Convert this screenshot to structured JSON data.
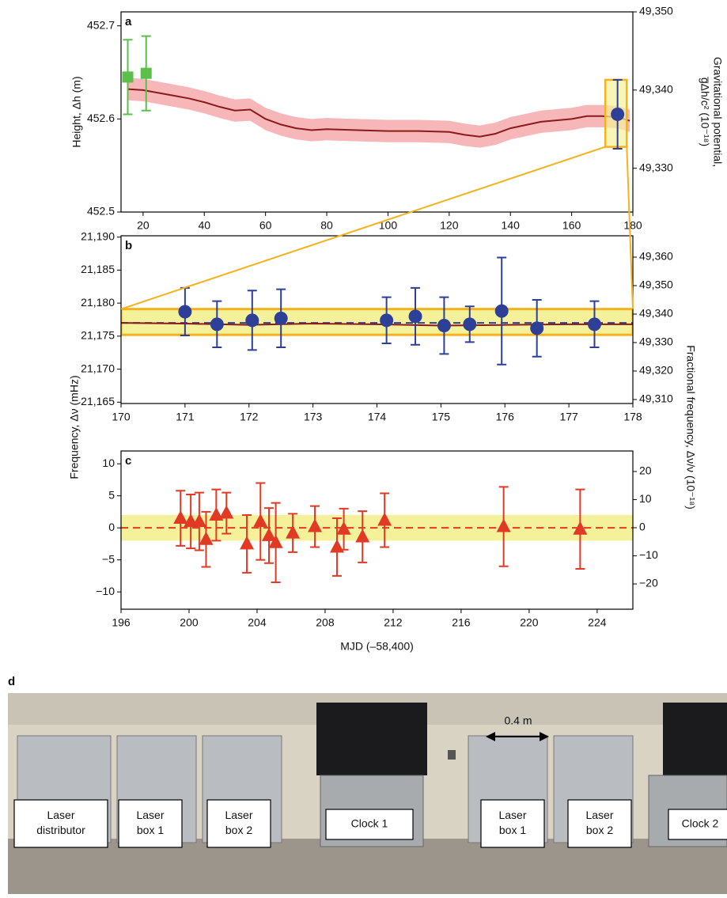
{
  "chart_data": [
    {
      "type": "errorbar",
      "panel": "a",
      "ylabel": "Height, Δh (m)",
      "y2label": [
        "Gravitational potential,",
        "g̅Δh/c² (10⁻¹⁸)"
      ],
      "xlim": [
        12.8,
        180
      ],
      "xticks": [
        20,
        40,
        60,
        80,
        100,
        120,
        140,
        160,
        180
      ],
      "ylim": [
        452.5,
        452.715
      ],
      "yticks": [
        452.5,
        452.6,
        452.7
      ],
      "y2lim": [
        49324.4,
        49350
      ],
      "y2ticks": [
        {
          "value": 49330,
          "label": "49,330"
        },
        {
          "value": 49340,
          "label": "49,340"
        },
        {
          "value": 49350,
          "label": "49,350"
        }
      ],
      "highlight": {
        "xlim": [
          171,
          178
        ],
        "ylim": [
          452.57,
          452.642
        ]
      },
      "series": [
        {
          "kind": "line",
          "color": "#8b1a1a",
          "band_color": "#f7b6b8",
          "band": 0.012,
          "x": [
            15,
            20,
            25,
            30,
            35,
            40,
            45,
            50,
            55,
            60,
            65,
            70,
            75,
            80,
            90,
            100,
            110,
            120,
            125,
            130,
            135,
            140,
            150,
            160,
            165,
            170,
            175,
            179
          ],
          "values": [
            452.632,
            452.631,
            452.628,
            452.625,
            452.622,
            452.618,
            452.613,
            452.609,
            452.61,
            452.6,
            452.594,
            452.59,
            452.588,
            452.589,
            452.588,
            452.587,
            452.587,
            452.586,
            452.583,
            452.581,
            452.584,
            452.59,
            452.597,
            452.6,
            452.603,
            452.603,
            452.602,
            452.598
          ]
        },
        {
          "kind": "points",
          "marker": "square",
          "color": "#5cbf4a",
          "x": [
            15,
            21
          ],
          "values": [
            452.645,
            452.649
          ],
          "errors": [
            0.04,
            0.04
          ]
        },
        {
          "kind": "points",
          "marker": "circle",
          "color": "#2d3f97",
          "x": [
            175
          ],
          "values": [
            452.605
          ],
          "errors": [
            0.037
          ]
        }
      ]
    },
    {
      "type": "errorbar",
      "panel": "b",
      "ylabel": "Frequency, Δν (mHz)",
      "y2label": [
        "Fractional  frequency, Δν/ν (10⁻¹⁸)"
      ],
      "xlim": [
        170,
        178
      ],
      "xticks": [
        170,
        171,
        172,
        173,
        174,
        175,
        176,
        177,
        178
      ],
      "ylim": [
        21164.8,
        21190.2
      ],
      "yticks": [
        {
          "value": 21165,
          "label": "21,165"
        },
        {
          "value": 21170,
          "label": "21,170"
        },
        {
          "value": 21175,
          "label": "21,175"
        },
        {
          "value": 21180,
          "label": "21,180"
        },
        {
          "value": 21185,
          "label": "21,185"
        },
        {
          "value": 21190,
          "label": "21,190"
        }
      ],
      "y2lim": [
        49308.6,
        49367.5
      ],
      "y2ticks": [
        {
          "value": 49310,
          "label": "49,310"
        },
        {
          "value": 49320,
          "label": "49,320"
        },
        {
          "value": 49330,
          "label": "49,330"
        },
        {
          "value": 49340,
          "label": "49,340"
        },
        {
          "value": 49350,
          "label": "49,350"
        },
        {
          "value": 49360,
          "label": "49,360"
        }
      ],
      "series": [
        {
          "kind": "span",
          "color": "#f4f19a",
          "edge": "#f5b21b",
          "range": [
            21175.2,
            21179.1
          ]
        },
        {
          "kind": "hline",
          "color": "#2d3f97",
          "value": 21177
        },
        {
          "kind": "line",
          "color": "#8b1a1a",
          "x": [
            170,
            171,
            172,
            173,
            174,
            175,
            176,
            177,
            178
          ],
          "values": [
            21177.0,
            21176.9,
            21176.7,
            21176.9,
            21176.8,
            21176.6,
            21176.7,
            21176.8,
            21176.8
          ]
        },
        {
          "kind": "points",
          "marker": "circle",
          "color": "#2d3f97",
          "x": [
            171.0,
            171.5,
            172.05,
            172.5,
            174.15,
            174.6,
            175.05,
            175.45,
            175.95,
            176.5,
            177.4
          ],
          "values": [
            21178.7,
            21176.8,
            21177.4,
            21177.7,
            21177.4,
            21178.0,
            21176.6,
            21176.8,
            21178.8,
            21176.2,
            21176.8
          ],
          "errors": [
            3.6,
            3.5,
            4.5,
            4.4,
            3.5,
            4.3,
            4.3,
            2.7,
            8.1,
            4.3,
            3.5
          ]
        }
      ]
    },
    {
      "type": "errorbar",
      "panel": "c",
      "xlabel": "MJD (–58,400)",
      "xlim": [
        196,
        226.1
      ],
      "xticks": [
        196,
        200,
        204,
        208,
        212,
        216,
        220,
        224
      ],
      "ylim": [
        -12.7,
        12
      ],
      "yticks": [
        {
          "value": -10,
          "label": "−10"
        },
        {
          "value": -5,
          "label": "−5"
        },
        0,
        5,
        10
      ],
      "y2lim": [
        -29,
        27.3
      ],
      "y2ticks": [
        {
          "value": -20,
          "label": "−20"
        },
        {
          "value": -10,
          "label": "−10"
        },
        0,
        10,
        20
      ],
      "series": [
        {
          "kind": "span",
          "color": "#f4f19a",
          "range": [
            -2,
            2
          ]
        },
        {
          "kind": "hline",
          "color": "#e03a24",
          "value": 0
        },
        {
          "kind": "points",
          "marker": "triangle",
          "color": "#e03a24",
          "x": [
            199.5,
            200.1,
            200.6,
            201.0,
            201.6,
            202.2,
            203.4,
            204.2,
            204.7,
            205.1,
            206.1,
            207.4,
            208.7,
            209.1,
            210.2,
            211.5,
            218.5,
            223.0
          ],
          "values": [
            1.5,
            1.0,
            1.0,
            -1.8,
            2.0,
            2.3,
            -2.5,
            1.0,
            -1.2,
            -2.3,
            -0.8,
            0.2,
            -3.0,
            -0.2,
            -1.4,
            1.2,
            0.2,
            -0.2
          ],
          "errors": [
            4.3,
            4.2,
            4.5,
            4.3,
            4.0,
            3.2,
            4.5,
            6.0,
            4.3,
            6.2,
            3.0,
            3.2,
            4.5,
            3.2,
            4.0,
            4.2,
            6.2,
            6.2
          ]
        }
      ]
    }
  ],
  "photo": {
    "panel": "d",
    "scale": "0.4 m",
    "labels": [
      [
        "Laser",
        "distributor"
      ],
      [
        "Laser",
        "box 1"
      ],
      [
        "Laser",
        "box 2"
      ],
      [
        "Clock 1"
      ],
      [
        "Laser",
        "box 1"
      ],
      [
        "Laser",
        "box 2"
      ],
      [
        "Clock 2"
      ]
    ]
  }
}
